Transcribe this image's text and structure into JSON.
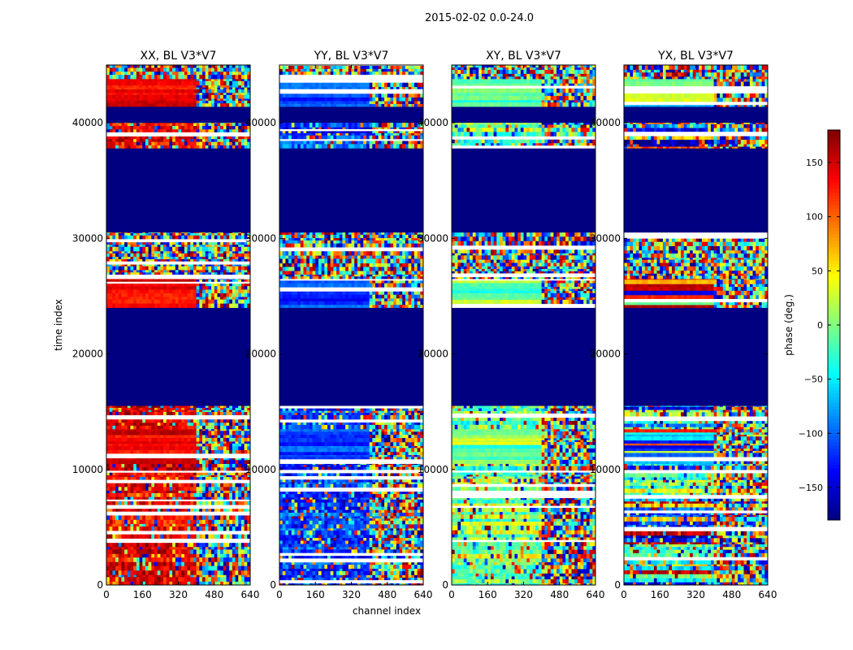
{
  "figure_title": "2015-02-02 0.0-24.0",
  "chart_data": {
    "type": "heatmap",
    "colormap": "jet",
    "panels": [
      {
        "title": "XX, BL V3*V7",
        "base_phase_low": 120,
        "base_phase_high": 160
      },
      {
        "title": "YY, BL V3*V7",
        "base_phase_low": -140,
        "base_phase_high": -90
      },
      {
        "title": "XY, BL V3*V7",
        "base_phase_low": -40,
        "base_phase_high": 40
      },
      {
        "title": "YX, BL V3*V7",
        "base_phase_low": -170,
        "base_phase_high": 170
      }
    ],
    "xlabel": "channel index",
    "ylabel": "time index",
    "xlim": [
      0,
      640
    ],
    "ylim": [
      0,
      45000
    ],
    "xticks": [
      0,
      160,
      320,
      480,
      640
    ],
    "yticks": [
      0,
      10000,
      20000,
      30000,
      40000
    ],
    "colorbar": {
      "label": "phase (deg.)",
      "range": [
        -180,
        180
      ],
      "ticks": [
        150,
        100,
        50,
        0,
        -50,
        -100,
        -150
      ],
      "tick_labels": [
        "150",
        "100",
        "50",
        "0",
        "−50",
        "−100",
        "−150"
      ]
    },
    "flagged_time_ranges": [
      [
        15500,
        24000
      ],
      [
        30500,
        37800
      ],
      [
        40000,
        41400
      ]
    ],
    "flagged_value_deg": -180,
    "channel_split": 400,
    "segments": [
      {
        "t0": 0,
        "t1": 10500,
        "mode": "noisy"
      },
      {
        "t0": 10500,
        "t1": 13500,
        "mode": "strong"
      },
      {
        "t0": 13500,
        "t1": 15500,
        "mode": "noisy"
      },
      {
        "t0": 24000,
        "t1": 26500,
        "mode": "strong"
      },
      {
        "t0": 26500,
        "t1": 30500,
        "mode": "random"
      },
      {
        "t0": 37800,
        "t1": 40000,
        "mode": "noisy"
      },
      {
        "t0": 41400,
        "t1": 43800,
        "mode": "strong"
      },
      {
        "t0": 43800,
        "t1": 45000,
        "mode": "random"
      }
    ]
  }
}
